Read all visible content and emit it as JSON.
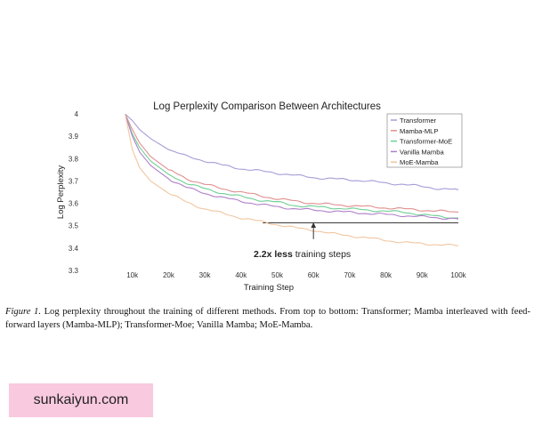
{
  "chart_data": {
    "type": "line",
    "title": "Log Perplexity Comparison Between Architectures",
    "xlabel": "Training Step",
    "ylabel": "Log Perplexity",
    "xlim": [
      0,
      100000
    ],
    "ylim": [
      3.3,
      4.0
    ],
    "xticks": [
      10000,
      20000,
      30000,
      40000,
      50000,
      60000,
      70000,
      80000,
      90000,
      100000
    ],
    "xtick_labels": [
      "10k",
      "20k",
      "30k",
      "40k",
      "50k",
      "60k",
      "70k",
      "80k",
      "90k",
      "100k"
    ],
    "yticks": [
      3.3,
      3.4,
      3.5,
      3.6,
      3.7,
      3.8,
      3.9,
      4.0
    ],
    "ytick_labels": [
      "3.3",
      "3.4",
      "3.5",
      "3.6",
      "3.7",
      "3.8",
      "3.9",
      "4"
    ],
    "legend_position": "top-right",
    "series": [
      {
        "name": "Transformer",
        "color": "#a99cd6",
        "x": [
          8000,
          10000,
          12000,
          15000,
          20000,
          25000,
          30000,
          35000,
          40000,
          45000,
          50000,
          55000,
          60000,
          65000,
          70000,
          75000,
          80000,
          85000,
          90000,
          95000,
          100000
        ],
        "y": [
          4.0,
          3.97,
          3.93,
          3.89,
          3.84,
          3.81,
          3.79,
          3.77,
          3.755,
          3.745,
          3.735,
          3.725,
          3.715,
          3.71,
          3.705,
          3.7,
          3.69,
          3.685,
          3.675,
          3.665,
          3.66
        ]
      },
      {
        "name": "Mamba-MLP",
        "color": "#e08f8f",
        "x": [
          8000,
          10000,
          12000,
          15000,
          20000,
          25000,
          30000,
          35000,
          40000,
          45000,
          50000,
          55000,
          60000,
          65000,
          70000,
          75000,
          80000,
          85000,
          90000,
          95000,
          100000
        ],
        "y": [
          4.0,
          3.93,
          3.87,
          3.81,
          3.75,
          3.71,
          3.685,
          3.665,
          3.65,
          3.635,
          3.62,
          3.61,
          3.6,
          3.595,
          3.59,
          3.585,
          3.58,
          3.575,
          3.57,
          3.565,
          3.56
        ]
      },
      {
        "name": "Transformer-MoE",
        "color": "#6fce95",
        "x": [
          8000,
          10000,
          12000,
          15000,
          20000,
          25000,
          30000,
          35000,
          40000,
          45000,
          50000,
          55000,
          60000,
          65000,
          70000,
          75000,
          80000,
          85000,
          90000,
          95000,
          100000
        ],
        "y": [
          4.0,
          3.91,
          3.85,
          3.79,
          3.73,
          3.69,
          3.665,
          3.645,
          3.63,
          3.615,
          3.605,
          3.59,
          3.585,
          3.58,
          3.575,
          3.57,
          3.565,
          3.56,
          3.55,
          3.54,
          3.535
        ]
      },
      {
        "name": "Vanilla Mamba",
        "color": "#b07fc9",
        "x": [
          8000,
          10000,
          12000,
          15000,
          20000,
          25000,
          30000,
          35000,
          40000,
          45000,
          50000,
          55000,
          60000,
          65000,
          70000,
          75000,
          80000,
          85000,
          90000,
          95000,
          100000
        ],
        "y": [
          4.0,
          3.9,
          3.83,
          3.77,
          3.71,
          3.67,
          3.645,
          3.625,
          3.61,
          3.595,
          3.585,
          3.575,
          3.57,
          3.565,
          3.56,
          3.555,
          3.55,
          3.545,
          3.54,
          3.535,
          3.53
        ]
      },
      {
        "name": "MoE-Mamba",
        "color": "#f2c6a0",
        "x": [
          8000,
          10000,
          12000,
          15000,
          20000,
          25000,
          30000,
          35000,
          40000,
          45000,
          50000,
          55000,
          60000,
          65000,
          70000,
          75000,
          80000,
          85000,
          90000,
          95000,
          100000
        ],
        "y": [
          4.0,
          3.84,
          3.76,
          3.7,
          3.645,
          3.605,
          3.575,
          3.555,
          3.535,
          3.52,
          3.505,
          3.49,
          3.48,
          3.465,
          3.455,
          3.445,
          3.435,
          3.425,
          3.42,
          3.415,
          3.41
        ]
      }
    ],
    "reference_line": {
      "y": 3.513,
      "x_start": 46000,
      "x_end": 100000,
      "color": "#3a3a3a"
    },
    "annotation": {
      "bold_text": "2.2x less",
      "text": " training steps",
      "arrow_x": 60000,
      "arrow_from_y": 3.44,
      "arrow_to_y": 3.515
    }
  },
  "caption": {
    "label": "Figure 1.",
    "text": " Log perplexity throughout the training of different methods.  From top to bottom: Transformer; Mamba interleaved with feed-forward layers (Mamba-MLP); Transformer-Moe; Vanilla Mamba; MoE-Mamba."
  },
  "watermark": {
    "text": "sunkaiyun.com"
  }
}
